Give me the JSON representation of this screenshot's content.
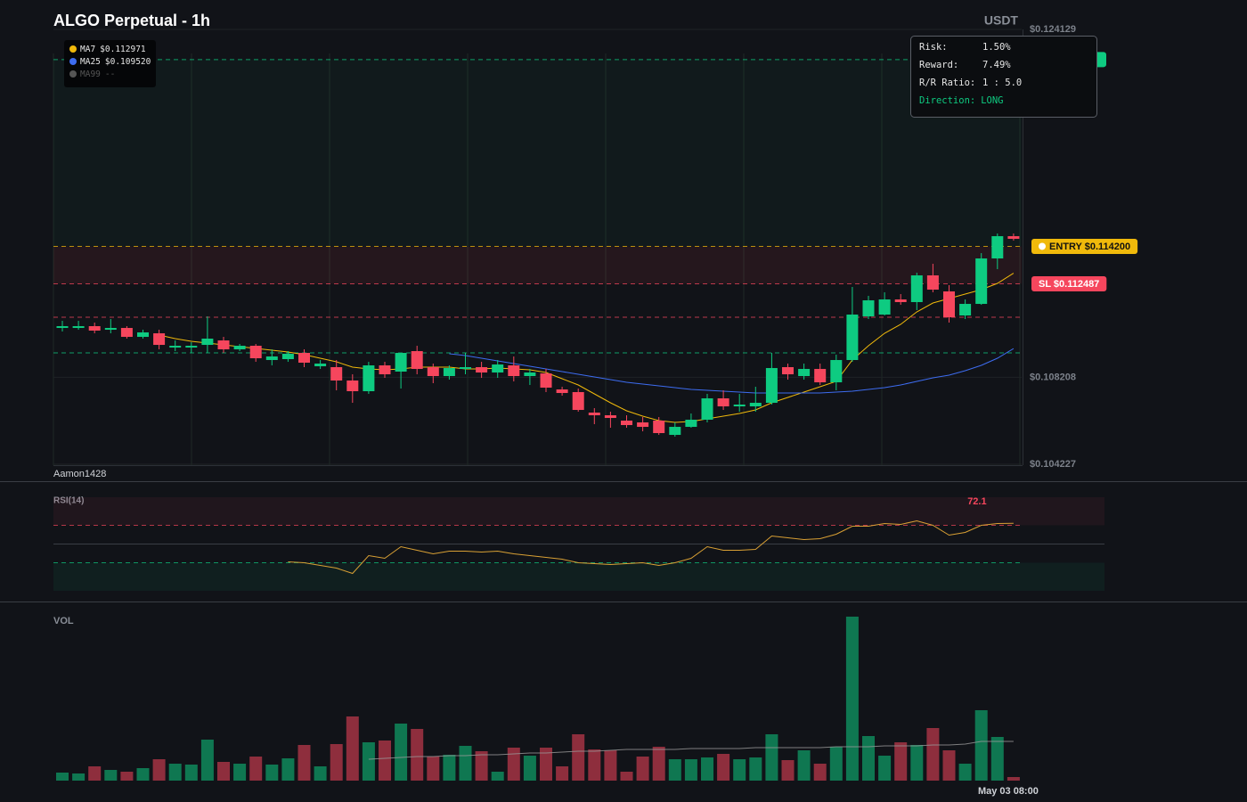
{
  "chart_data": [
    {
      "type": "candlestick",
      "title": "ALGO Perpetual - 1h",
      "unit": "USDT",
      "ylim": [
        0.104227,
        0.124129
      ],
      "yticks": [
        {
          "value": 0.124129,
          "label": "$0.124129"
        },
        {
          "value": 0.108208,
          "label": "$0.108208"
        },
        {
          "value": 0.104227,
          "label": "$0.104227"
        }
      ],
      "up_color": "#0ecb81",
      "down_color": "#f6465d",
      "candles": [
        [
          0.110466,
          0.110792,
          0.110303,
          0.110548
        ],
        [
          0.110466,
          0.110792,
          0.110384,
          0.110548
        ],
        [
          0.110548,
          0.110711,
          0.110221,
          0.110344
        ],
        [
          0.110384,
          0.110874,
          0.110221,
          0.110466
        ],
        [
          0.110466,
          0.110548,
          0.109977,
          0.110058
        ],
        [
          0.110058,
          0.110384,
          0.109977,
          0.110262
        ],
        [
          0.110221,
          0.110384,
          0.109487,
          0.109691
        ],
        [
          0.109569,
          0.109895,
          0.109406,
          0.10965
        ],
        [
          0.109569,
          0.109813,
          0.109324,
          0.10965
        ],
        [
          0.109691,
          0.110996,
          0.109324,
          0.109977
        ],
        [
          0.109895,
          0.110058,
          0.109324,
          0.109487
        ],
        [
          0.109487,
          0.109732,
          0.109406,
          0.10965
        ],
        [
          0.10965,
          0.109732,
          0.108916,
          0.109079
        ],
        [
          0.108998,
          0.109487,
          0.108753,
          0.109161
        ],
        [
          0.109039,
          0.109406,
          0.108916,
          0.109283
        ],
        [
          0.109324,
          0.109487,
          0.108672,
          0.108876
        ],
        [
          0.108712,
          0.108998,
          0.10859,
          0.108835
        ],
        [
          0.108672,
          0.108998,
          0.107611,
          0.10806
        ],
        [
          0.10806,
          0.108345,
          0.10704,
          0.107571
        ],
        [
          0.107571,
          0.108916,
          0.107448,
          0.108753
        ],
        [
          0.108753,
          0.108916,
          0.108182,
          0.108345
        ],
        [
          0.108468,
          0.109324,
          0.107693,
          0.109324
        ],
        [
          0.109406,
          0.10965,
          0.108345,
          0.10859
        ],
        [
          0.108672,
          0.108835,
          0.107938,
          0.108264
        ],
        [
          0.108264,
          0.108753,
          0.108101,
          0.108631
        ],
        [
          0.10859,
          0.109324,
          0.108345,
          0.108672
        ],
        [
          0.108672,
          0.108916,
          0.108182,
          0.108427
        ],
        [
          0.108427,
          0.108998,
          0.108182,
          0.108794
        ],
        [
          0.108753,
          0.109161,
          0.108019,
          0.108264
        ],
        [
          0.108264,
          0.10859,
          0.107856,
          0.108427
        ],
        [
          0.108386,
          0.10859,
          0.10753,
          0.107734
        ],
        [
          0.107652,
          0.107774,
          0.107367,
          0.107489
        ],
        [
          0.10753,
          0.107693,
          0.106633,
          0.106714
        ],
        [
          0.106592,
          0.106796,
          0.106062,
          0.10647
        ],
        [
          0.10647,
          0.106633,
          0.105899,
          0.106347
        ],
        [
          0.106225,
          0.10647,
          0.105899,
          0.106021
        ],
        [
          0.106143,
          0.106388,
          0.105735,
          0.105939
        ],
        [
          0.106225,
          0.106388,
          0.105572,
          0.105654
        ],
        [
          0.105572,
          0.106143,
          0.105491,
          0.105939
        ],
        [
          0.105939,
          0.106551,
          0.105899,
          0.106266
        ],
        [
          0.106266,
          0.107448,
          0.106143,
          0.107244
        ],
        [
          0.107244,
          0.107611,
          0.106714,
          0.106877
        ],
        [
          0.106877,
          0.107448,
          0.106633,
          0.106959
        ],
        [
          0.106877,
          0.107774,
          0.106633,
          0.10704
        ],
        [
          0.10704,
          0.109324,
          0.106959,
          0.108631
        ],
        [
          0.108672,
          0.108835,
          0.108101,
          0.108345
        ],
        [
          0.108264,
          0.108835,
          0.108101,
          0.10859
        ],
        [
          0.10859,
          0.108835,
          0.107856,
          0.107978
        ],
        [
          0.107978,
          0.109243,
          0.107611,
          0.108998
        ],
        [
          0.108998,
          0.112342,
          0.108916,
          0.111078
        ],
        [
          0.110996,
          0.111934,
          0.110874,
          0.11173
        ],
        [
          0.111078,
          0.112097,
          0.111037,
          0.111771
        ],
        [
          0.111771,
          0.112016,
          0.111526,
          0.111649
        ],
        [
          0.111649,
          0.112994,
          0.111282,
          0.112872
        ],
        [
          0.112872,
          0.113402,
          0.112097,
          0.112219
        ],
        [
          0.112138,
          0.112423,
          0.110711,
          0.110955
        ],
        [
          0.111037,
          0.111771,
          0.110874,
          0.111567
        ],
        [
          0.111567,
          0.113891,
          0.111526,
          0.113647
        ],
        [
          0.113647,
          0.114789,
          0.113157,
          0.114666
        ],
        [
          0.114666,
          0.114789,
          0.114462,
          0.114544
        ]
      ],
      "series": [
        {
          "name": "MA7",
          "legend_value": "$0.112971",
          "color": "#f0b90b",
          "values": [
            null,
            null,
            null,
            null,
            null,
            null,
            0.11014,
            0.109977,
            0.109854,
            0.109773,
            0.109691,
            0.10961,
            0.109528,
            0.109446,
            0.109365,
            0.109243,
            0.109079,
            0.108916,
            0.108672,
            0.10859,
            0.108549,
            0.10859,
            0.108672,
            0.108672,
            0.108672,
            0.10859,
            0.10859,
            0.108631,
            0.10859,
            0.108549,
            0.108427,
            0.108141,
            0.107856,
            0.107448,
            0.10704,
            0.106673,
            0.106429,
            0.106225,
            0.106143,
            0.106184,
            0.106306,
            0.106429,
            0.106551,
            0.106714,
            0.10704,
            0.107285,
            0.10753,
            0.107774,
            0.108019,
            0.108998,
            0.10965,
            0.110221,
            0.110629,
            0.1112,
            0.111608,
            0.111812,
            0.112016,
            0.112219,
            0.112505,
            0.112971
          ]
        },
        {
          "name": "MA25",
          "legend_value": "$0.109520",
          "color": "#3d6cf0",
          "values": [
            null,
            null,
            null,
            null,
            null,
            null,
            null,
            null,
            null,
            null,
            null,
            null,
            null,
            null,
            null,
            null,
            null,
            null,
            null,
            null,
            null,
            null,
            null,
            null,
            0.109283,
            0.109202,
            0.109079,
            0.108957,
            0.108835,
            0.108712,
            0.10859,
            0.108468,
            0.108345,
            0.108223,
            0.108101,
            0.107978,
            0.107897,
            0.107815,
            0.107734,
            0.107652,
            0.107611,
            0.107571,
            0.10753,
            0.107489,
            0.107489,
            0.107489,
            0.107489,
            0.107489,
            0.10753,
            0.107571,
            0.107652,
            0.107734,
            0.107856,
            0.108019,
            0.108182,
            0.108304,
            0.108509,
            0.108753,
            0.109079,
            0.10952
          ]
        },
        {
          "name": "MA99",
          "legend_value": "--",
          "color": "#555555"
        }
      ],
      "levels": [
        {
          "value": 0.12275,
          "color": "#0ecb81"
        },
        {
          "value": 0.1142,
          "label": "ENTRY $0.114200",
          "color": "#f0b90b"
        },
        {
          "value": 0.112487,
          "label": "SL $0.112487",
          "color": "#f6465d"
        },
        {
          "value": 0.110955,
          "color": "#f6465d"
        },
        {
          "value": 0.109325,
          "color": "#0ecb81"
        }
      ],
      "watermark": "Aamon1428",
      "risk_panel": [
        {
          "label": "Risk:",
          "value": "1.50%"
        },
        {
          "label": "Reward:",
          "value": "7.49%"
        },
        {
          "label": "R/R Ratio:",
          "value": "1 : 5.0"
        },
        {
          "label": "Direction:",
          "value": "LONG"
        }
      ]
    },
    {
      "type": "line",
      "title": "RSI(14)",
      "ylim": [
        0,
        100
      ],
      "levels": [
        70,
        50,
        30
      ],
      "color": "#d9a034",
      "values": [
        null,
        null,
        null,
        null,
        null,
        null,
        null,
        null,
        null,
        null,
        null,
        null,
        null,
        null,
        31.0,
        30.0,
        27.1,
        24.3,
        18.6,
        37.6,
        34.8,
        47.1,
        43.3,
        39.5,
        42.4,
        42.4,
        41.4,
        42.4,
        39.5,
        37.6,
        35.7,
        33.8,
        30.0,
        29.0,
        28.1,
        29.0,
        30.0,
        27.1,
        30.0,
        34.8,
        47.1,
        43.3,
        43.3,
        44.3,
        58.6,
        56.7,
        54.8,
        55.7,
        60.5,
        69.0,
        69.0,
        71.9,
        71.0,
        74.8,
        70.0,
        59.5,
        62.4,
        70.0,
        71.9,
        72.1
      ]
    },
    {
      "type": "bar",
      "title": "VOL",
      "ylim": [
        0,
        200
      ],
      "categories": [
        null,
        null,
        null,
        null,
        null,
        null,
        null,
        null,
        null,
        null,
        null,
        null,
        null,
        null,
        null,
        null,
        null,
        null,
        null,
        null,
        null,
        null,
        null,
        null,
        null,
        null,
        null,
        null,
        null,
        null,
        null,
        null,
        null,
        null,
        null,
        null,
        null,
        null,
        null,
        null,
        null,
        null,
        null,
        null,
        null,
        null,
        null,
        null,
        null,
        null,
        null,
        null,
        null,
        null,
        null,
        null,
        null,
        null,
        null,
        "May 03 08:00"
      ],
      "values": [
        9,
        8,
        16,
        12,
        10,
        14,
        24,
        19,
        18,
        46,
        21,
        19,
        27,
        18,
        25,
        40,
        16,
        41,
        72,
        43,
        45,
        64,
        58,
        27,
        29,
        39,
        33,
        10,
        37,
        28,
        37,
        16,
        52,
        35,
        34,
        10,
        27,
        38,
        24,
        24,
        26,
        30,
        24,
        26,
        52,
        23,
        34,
        19,
        38,
        184,
        50,
        28,
        43,
        40,
        59,
        34,
        19,
        79,
        49,
        4
      ],
      "ma": [
        null,
        null,
        null,
        null,
        null,
        null,
        null,
        null,
        null,
        null,
        null,
        null,
        null,
        null,
        null,
        null,
        null,
        null,
        null,
        24,
        25,
        26,
        27,
        27,
        28,
        28,
        29,
        29,
        30,
        31,
        31,
        32,
        33,
        33,
        34,
        35,
        35,
        35,
        35,
        36,
        36,
        36,
        36,
        37,
        37,
        37,
        37,
        37,
        38,
        38,
        38,
        39,
        39,
        39,
        40,
        40,
        41,
        44,
        44,
        44
      ],
      "ma_color": "#9a9a9a"
    }
  ]
}
